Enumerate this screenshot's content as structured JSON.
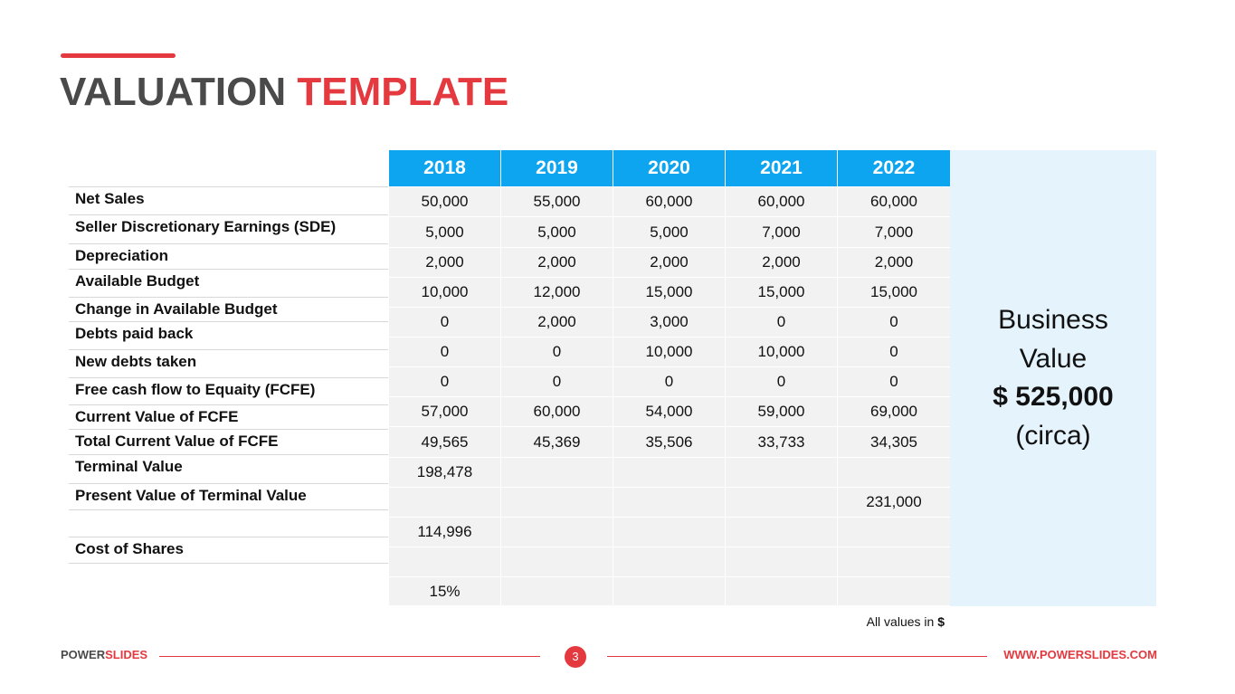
{
  "slide": {
    "title_part1": "VALUATION",
    "title_part2": "TEMPLATE",
    "years": [
      "2018",
      "2019",
      "2020",
      "2021",
      "2022"
    ],
    "labels": [
      "Net Sales",
      "Seller Discretionary Earnings (SDE)",
      "Depreciation",
      "Available Budget",
      "Change in Available Budget",
      "Debts paid back",
      "New debts taken",
      "Free cash flow to Equaity (FCFE)",
      "Current Value of FCFE",
      "Total Current Value of FCFE",
      "Terminal Value",
      "Present Value of Terminal Value",
      "",
      "Cost of Shares"
    ],
    "rows": [
      [
        "50,000",
        "55,000",
        "60,000",
        "60,000",
        "60,000"
      ],
      [
        "5,000",
        "5,000",
        "5,000",
        "7,000",
        "7,000"
      ],
      [
        "2,000",
        "2,000",
        "2,000",
        "2,000",
        "2,000"
      ],
      [
        "10,000",
        "12,000",
        "15,000",
        "15,000",
        "15,000"
      ],
      [
        "0",
        "2,000",
        "3,000",
        "0",
        "0"
      ],
      [
        "0",
        "0",
        "10,000",
        "10,000",
        "0"
      ],
      [
        "0",
        "0",
        "0",
        "0",
        "0"
      ],
      [
        "57,000",
        "60,000",
        "54,000",
        "59,000",
        "69,000"
      ],
      [
        "49,565",
        "45,369",
        "35,506",
        "33,733",
        "34,305"
      ],
      [
        "198,478",
        "",
        "",
        "",
        ""
      ],
      [
        "",
        "",
        "",
        "",
        "231,000"
      ],
      [
        "114,996",
        "",
        "",
        "",
        ""
      ],
      [
        "",
        "",
        "",
        "",
        ""
      ],
      [
        "15%",
        "",
        "",
        "",
        ""
      ]
    ],
    "business_value": {
      "line1": "Business",
      "line2": "Value",
      "amount": "$ 525,000",
      "note": "(circa)"
    },
    "footnote_prefix": "All values in",
    "footnote_currency": "$"
  },
  "footer": {
    "brand_part1": "POWER",
    "brand_part2": "SLIDES",
    "page_number": "3",
    "url": "WWW.POWERSLIDES.COM"
  },
  "colors": {
    "accent_red": "#e3393f",
    "header_blue": "#0ea5f0",
    "panel_blue": "#e5f3fc",
    "cell_gray": "#f2f2f2"
  }
}
